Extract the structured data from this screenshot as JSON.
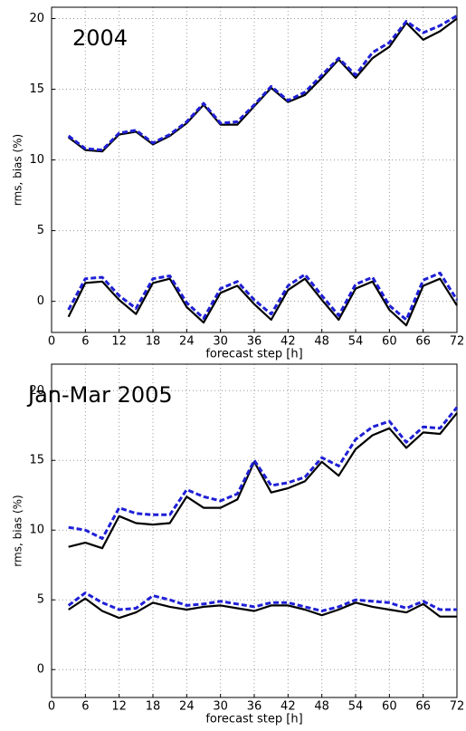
{
  "chart_data": [
    {
      "type": "line",
      "annotation": "2004",
      "xlabel": "forecast step [h]",
      "ylabel": "rms, bias (%)",
      "x": [
        3,
        6,
        9,
        12,
        15,
        18,
        21,
        24,
        27,
        30,
        33,
        36,
        39,
        42,
        45,
        48,
        51,
        54,
        57,
        60,
        63,
        66,
        69,
        72
      ],
      "xlim": [
        0,
        72
      ],
      "xticks": [
        0,
        6,
        12,
        18,
        24,
        30,
        36,
        42,
        48,
        54,
        60,
        66,
        72
      ],
      "ylim": [
        -2.2,
        20.8
      ],
      "yticks": [
        0,
        5,
        10,
        15,
        20
      ],
      "grid": true,
      "series": [
        {
          "color": "#000000",
          "dash": false,
          "values": [
            11.6,
            10.7,
            10.6,
            11.8,
            12.0,
            11.1,
            11.7,
            12.6,
            13.9,
            12.5,
            12.5,
            13.8,
            15.1,
            14.1,
            14.6,
            15.8,
            17.1,
            15.8,
            17.2,
            18.0,
            19.7,
            18.5,
            19.1,
            20.0
          ]
        },
        {
          "color": "#1f1fd6",
          "dash": true,
          "values": [
            11.7,
            10.8,
            10.7,
            11.9,
            12.1,
            11.2,
            11.8,
            12.7,
            14.0,
            12.6,
            12.7,
            13.9,
            15.2,
            14.2,
            14.8,
            16.0,
            17.2,
            16.0,
            17.6,
            18.3,
            19.8,
            19.0,
            19.5,
            20.2
          ]
        },
        {
          "color": "#000000",
          "dash": false,
          "values": [
            -1.1,
            1.3,
            1.4,
            0.1,
            -0.9,
            1.3,
            1.6,
            -0.4,
            -1.5,
            0.6,
            1.1,
            -0.2,
            -1.3,
            0.8,
            1.6,
            0.1,
            -1.3,
            0.9,
            1.4,
            -0.6,
            -1.7,
            1.1,
            1.6,
            -0.3
          ]
        },
        {
          "color": "#1f1fd6",
          "dash": true,
          "values": [
            -0.6,
            1.6,
            1.7,
            0.4,
            -0.5,
            1.6,
            1.8,
            -0.1,
            -1.2,
            0.9,
            1.4,
            0.1,
            -0.9,
            1.1,
            1.9,
            0.4,
            -1.0,
            1.2,
            1.7,
            -0.3,
            -1.3,
            1.5,
            2.0,
            0.1
          ]
        }
      ]
    },
    {
      "type": "line",
      "annotation": "Jan-Mar 2005",
      "xlabel": "forecast step [h]",
      "ylabel": "rms, bias (%)",
      "x": [
        3,
        6,
        9,
        12,
        15,
        18,
        21,
        24,
        27,
        30,
        33,
        36,
        39,
        42,
        45,
        48,
        51,
        54,
        57,
        60,
        63,
        66,
        69,
        72
      ],
      "xlim": [
        0,
        72
      ],
      "xticks": [
        0,
        6,
        12,
        18,
        24,
        30,
        36,
        42,
        48,
        54,
        60,
        66,
        72
      ],
      "ylim": [
        -2,
        21.9
      ],
      "yticks": [
        0,
        5,
        10,
        15,
        20
      ],
      "grid": true,
      "series": [
        {
          "color": "#000000",
          "dash": false,
          "values": [
            8.8,
            9.1,
            8.7,
            11.0,
            10.5,
            10.4,
            10.5,
            12.4,
            11.6,
            11.6,
            12.2,
            14.9,
            12.7,
            13.0,
            13.5,
            14.9,
            13.9,
            15.8,
            16.8,
            17.3,
            15.9,
            17.0,
            16.9,
            18.4
          ]
        },
        {
          "color": "#1f1fd6",
          "dash": true,
          "values": [
            10.2,
            10.0,
            9.4,
            11.6,
            11.2,
            11.1,
            11.1,
            12.9,
            12.4,
            12.1,
            12.6,
            15.0,
            13.2,
            13.4,
            13.8,
            15.2,
            14.6,
            16.5,
            17.4,
            17.8,
            16.3,
            17.4,
            17.3,
            18.8
          ]
        },
        {
          "color": "#000000",
          "dash": false,
          "values": [
            4.3,
            5.1,
            4.2,
            3.7,
            4.1,
            4.8,
            4.5,
            4.3,
            4.5,
            4.6,
            4.4,
            4.2,
            4.6,
            4.6,
            4.3,
            3.9,
            4.3,
            4.8,
            4.5,
            4.3,
            4.1,
            4.7,
            3.8,
            3.8
          ]
        },
        {
          "color": "#1f1fd6",
          "dash": true,
          "values": [
            4.6,
            5.5,
            4.8,
            4.3,
            4.4,
            5.3,
            5.0,
            4.6,
            4.7,
            4.9,
            4.7,
            4.5,
            4.8,
            4.8,
            4.5,
            4.2,
            4.5,
            5.0,
            4.9,
            4.8,
            4.4,
            4.9,
            4.3,
            4.3
          ]
        }
      ]
    }
  ]
}
